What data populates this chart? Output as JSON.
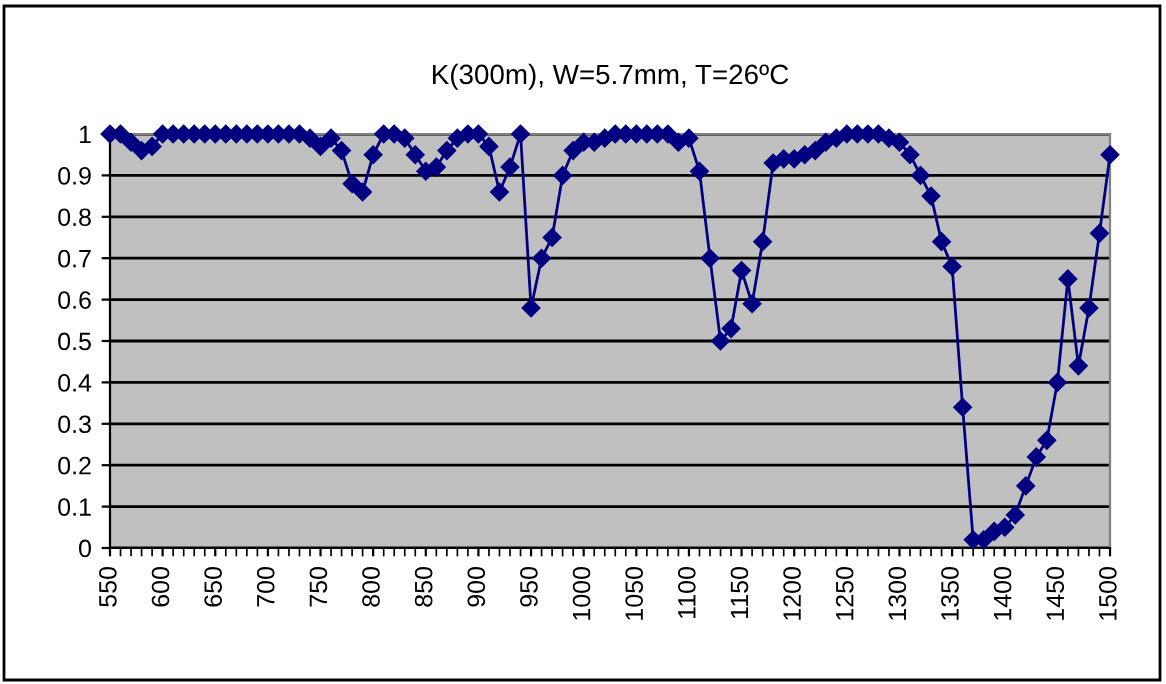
{
  "chart_data": {
    "type": "line",
    "title": "K(300m), W=5.7mm, T=26ºC",
    "x": [
      550,
      560,
      570,
      580,
      590,
      600,
      610,
      620,
      630,
      640,
      650,
      660,
      670,
      680,
      690,
      700,
      710,
      720,
      730,
      740,
      750,
      760,
      770,
      780,
      790,
      800,
      810,
      820,
      830,
      840,
      850,
      860,
      870,
      880,
      890,
      900,
      910,
      920,
      930,
      940,
      950,
      960,
      970,
      980,
      990,
      1000,
      1010,
      1020,
      1030,
      1040,
      1050,
      1060,
      1070,
      1080,
      1090,
      1100,
      1110,
      1120,
      1130,
      1140,
      1150,
      1160,
      1170,
      1180,
      1190,
      1200,
      1210,
      1220,
      1230,
      1240,
      1250,
      1260,
      1270,
      1280,
      1290,
      1300,
      1310,
      1320,
      1330,
      1340,
      1350,
      1360,
      1370,
      1380,
      1390,
      1400,
      1410,
      1420,
      1430,
      1440,
      1450,
      1460,
      1470,
      1480,
      1490,
      1500
    ],
    "series": [
      {
        "color": "#000080",
        "values": [
          1.0,
          1.0,
          0.98,
          0.96,
          0.97,
          1.0,
          1.0,
          1.0,
          1.0,
          1.0,
          1.0,
          1.0,
          1.0,
          1.0,
          1.0,
          1.0,
          1.0,
          1.0,
          1.0,
          0.99,
          0.97,
          0.99,
          0.96,
          0.88,
          0.86,
          0.95,
          1.0,
          1.0,
          0.99,
          0.95,
          0.91,
          0.92,
          0.96,
          0.99,
          1.0,
          1.0,
          0.97,
          0.86,
          0.92,
          1.0,
          0.58,
          0.7,
          0.75,
          0.9,
          0.96,
          0.98,
          0.98,
          0.99,
          1.0,
          1.0,
          1.0,
          1.0,
          1.0,
          1.0,
          0.98,
          0.99,
          0.91,
          0.7,
          0.5,
          0.53,
          0.67,
          0.59,
          0.74,
          0.93,
          0.94,
          0.94,
          0.95,
          0.96,
          0.98,
          0.99,
          1.0,
          1.0,
          1.0,
          1.0,
          0.99,
          0.98,
          0.95,
          0.9,
          0.85,
          0.74,
          0.68,
          0.34,
          0.02,
          0.02,
          0.04,
          0.05,
          0.08,
          0.15,
          0.22,
          0.26,
          0.4,
          0.65,
          0.44,
          0.58,
          0.76,
          0.95
        ]
      }
    ],
    "xlim": [
      550,
      1500
    ],
    "xticks": [
      550,
      600,
      650,
      700,
      750,
      800,
      850,
      900,
      950,
      1000,
      1050,
      1100,
      1150,
      1200,
      1250,
      1300,
      1350,
      1400,
      1450,
      1500
    ],
    "ylim": [
      0,
      1
    ],
    "yticks": [
      0,
      0.1,
      0.2,
      0.3,
      0.4,
      0.5,
      0.6,
      0.7,
      0.8,
      0.9,
      1
    ],
    "grid": "y",
    "legend": false,
    "marker": "diamond",
    "line_style": "solid"
  }
}
